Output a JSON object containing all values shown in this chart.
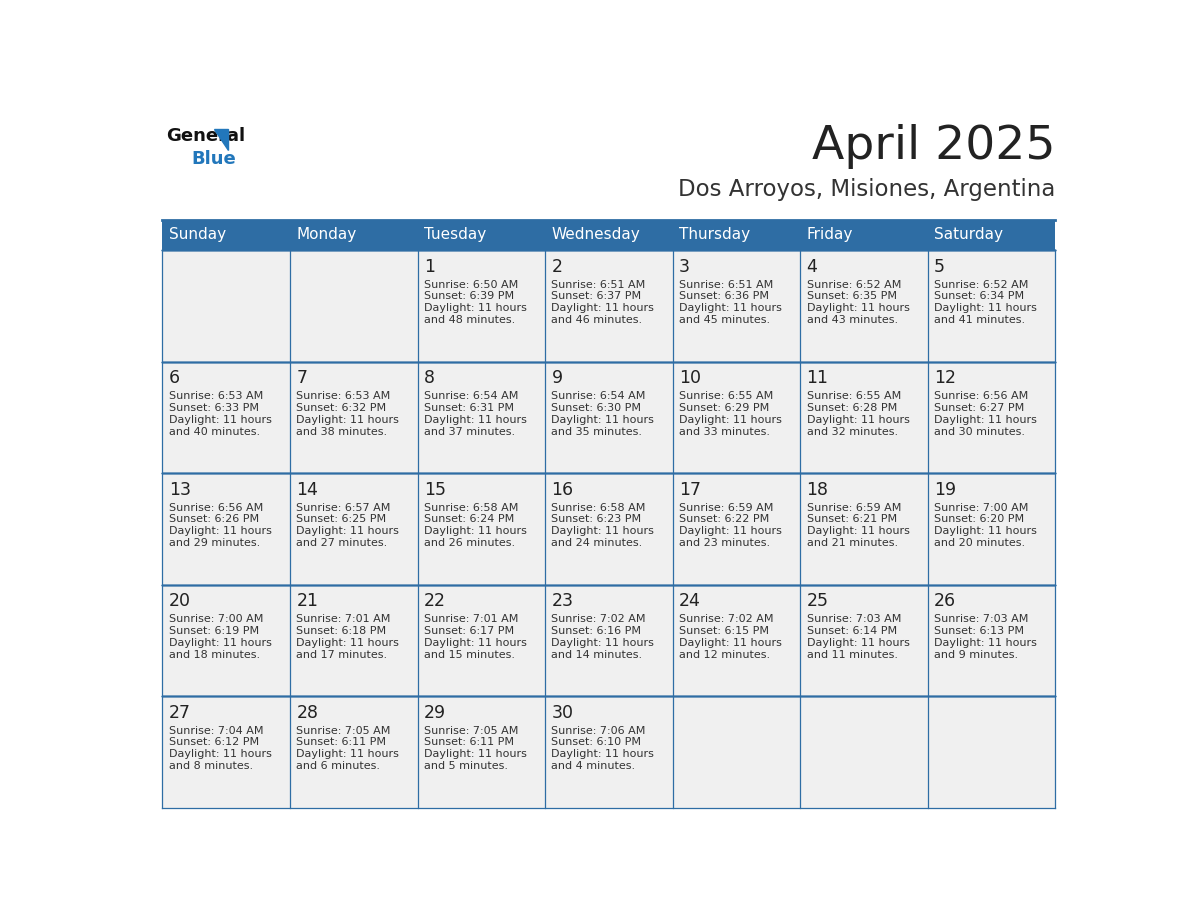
{
  "title": "April 2025",
  "subtitle": "Dos Arroyos, Misiones, Argentina",
  "header_bg": "#2E6DA4",
  "header_text_color": "#FFFFFF",
  "cell_bg": "#F0F0F0",
  "cell_bg_empty": "#F0F0F0",
  "day_number_color": "#222222",
  "cell_text_color": "#333333",
  "grid_line_color": "#2E6DA4",
  "title_color": "#222222",
  "subtitle_color": "#333333",
  "logo_text_color": "#111111",
  "logo_blue_color": "#2277BB",
  "days_of_week": [
    "Sunday",
    "Monday",
    "Tuesday",
    "Wednesday",
    "Thursday",
    "Friday",
    "Saturday"
  ],
  "weeks": [
    [
      {
        "day": "",
        "sunrise": "",
        "sunset": "",
        "daylight": ""
      },
      {
        "day": "",
        "sunrise": "",
        "sunset": "",
        "daylight": ""
      },
      {
        "day": "1",
        "sunrise": "6:50 AM",
        "sunset": "6:39 PM",
        "daylight": "11 hours and 48 minutes."
      },
      {
        "day": "2",
        "sunrise": "6:51 AM",
        "sunset": "6:37 PM",
        "daylight": "11 hours and 46 minutes."
      },
      {
        "day": "3",
        "sunrise": "6:51 AM",
        "sunset": "6:36 PM",
        "daylight": "11 hours and 45 minutes."
      },
      {
        "day": "4",
        "sunrise": "6:52 AM",
        "sunset": "6:35 PM",
        "daylight": "11 hours and 43 minutes."
      },
      {
        "day": "5",
        "sunrise": "6:52 AM",
        "sunset": "6:34 PM",
        "daylight": "11 hours and 41 minutes."
      }
    ],
    [
      {
        "day": "6",
        "sunrise": "6:53 AM",
        "sunset": "6:33 PM",
        "daylight": "11 hours and 40 minutes."
      },
      {
        "day": "7",
        "sunrise": "6:53 AM",
        "sunset": "6:32 PM",
        "daylight": "11 hours and 38 minutes."
      },
      {
        "day": "8",
        "sunrise": "6:54 AM",
        "sunset": "6:31 PM",
        "daylight": "11 hours and 37 minutes."
      },
      {
        "day": "9",
        "sunrise": "6:54 AM",
        "sunset": "6:30 PM",
        "daylight": "11 hours and 35 minutes."
      },
      {
        "day": "10",
        "sunrise": "6:55 AM",
        "sunset": "6:29 PM",
        "daylight": "11 hours and 33 minutes."
      },
      {
        "day": "11",
        "sunrise": "6:55 AM",
        "sunset": "6:28 PM",
        "daylight": "11 hours and 32 minutes."
      },
      {
        "day": "12",
        "sunrise": "6:56 AM",
        "sunset": "6:27 PM",
        "daylight": "11 hours and 30 minutes."
      }
    ],
    [
      {
        "day": "13",
        "sunrise": "6:56 AM",
        "sunset": "6:26 PM",
        "daylight": "11 hours and 29 minutes."
      },
      {
        "day": "14",
        "sunrise": "6:57 AM",
        "sunset": "6:25 PM",
        "daylight": "11 hours and 27 minutes."
      },
      {
        "day": "15",
        "sunrise": "6:58 AM",
        "sunset": "6:24 PM",
        "daylight": "11 hours and 26 minutes."
      },
      {
        "day": "16",
        "sunrise": "6:58 AM",
        "sunset": "6:23 PM",
        "daylight": "11 hours and 24 minutes."
      },
      {
        "day": "17",
        "sunrise": "6:59 AM",
        "sunset": "6:22 PM",
        "daylight": "11 hours and 23 minutes."
      },
      {
        "day": "18",
        "sunrise": "6:59 AM",
        "sunset": "6:21 PM",
        "daylight": "11 hours and 21 minutes."
      },
      {
        "day": "19",
        "sunrise": "7:00 AM",
        "sunset": "6:20 PM",
        "daylight": "11 hours and 20 minutes."
      }
    ],
    [
      {
        "day": "20",
        "sunrise": "7:00 AM",
        "sunset": "6:19 PM",
        "daylight": "11 hours and 18 minutes."
      },
      {
        "day": "21",
        "sunrise": "7:01 AM",
        "sunset": "6:18 PM",
        "daylight": "11 hours and 17 minutes."
      },
      {
        "day": "22",
        "sunrise": "7:01 AM",
        "sunset": "6:17 PM",
        "daylight": "11 hours and 15 minutes."
      },
      {
        "day": "23",
        "sunrise": "7:02 AM",
        "sunset": "6:16 PM",
        "daylight": "11 hours and 14 minutes."
      },
      {
        "day": "24",
        "sunrise": "7:02 AM",
        "sunset": "6:15 PM",
        "daylight": "11 hours and 12 minutes."
      },
      {
        "day": "25",
        "sunrise": "7:03 AM",
        "sunset": "6:14 PM",
        "daylight": "11 hours and 11 minutes."
      },
      {
        "day": "26",
        "sunrise": "7:03 AM",
        "sunset": "6:13 PM",
        "daylight": "11 hours and 9 minutes."
      }
    ],
    [
      {
        "day": "27",
        "sunrise": "7:04 AM",
        "sunset": "6:12 PM",
        "daylight": "11 hours and 8 minutes."
      },
      {
        "day": "28",
        "sunrise": "7:05 AM",
        "sunset": "6:11 PM",
        "daylight": "11 hours and 6 minutes."
      },
      {
        "day": "29",
        "sunrise": "7:05 AM",
        "sunset": "6:11 PM",
        "daylight": "11 hours and 5 minutes."
      },
      {
        "day": "30",
        "sunrise": "7:06 AM",
        "sunset": "6:10 PM",
        "daylight": "11 hours and 4 minutes."
      },
      {
        "day": "",
        "sunrise": "",
        "sunset": "",
        "daylight": ""
      },
      {
        "day": "",
        "sunrise": "",
        "sunset": "",
        "daylight": ""
      },
      {
        "day": "",
        "sunrise": "",
        "sunset": "",
        "daylight": ""
      }
    ]
  ]
}
